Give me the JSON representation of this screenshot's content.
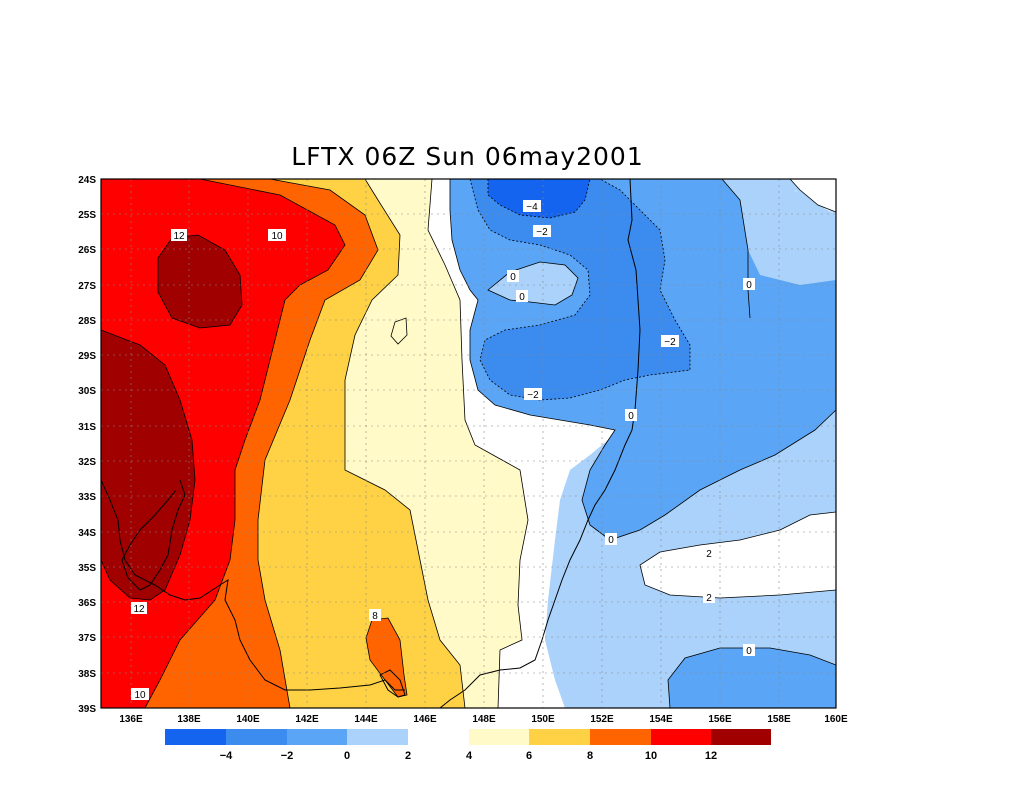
{
  "title": "LFTX 06Z Sun 06may2001",
  "lat_ticks": [
    "24S",
    "25S",
    "26S",
    "27S",
    "28S",
    "29S",
    "30S",
    "31S",
    "32S",
    "33S",
    "34S",
    "35S",
    "36S",
    "37S",
    "38S",
    "39S"
  ],
  "lon_ticks": [
    "136E",
    "138E",
    "140E",
    "142E",
    "144E",
    "146E",
    "148E",
    "150E",
    "152E",
    "154E",
    "156E",
    "158E",
    "160E"
  ],
  "colors": {
    "lt_m4": "#1464f0",
    "m4_m2": "#3c8cf0",
    "m2_0": "#5aa5f5",
    "0_2": "#aad2fa",
    "2_4": "#ffffff",
    "4_6": "#fffac8",
    "6_8": "#ffd246",
    "8_10": "#ff6400",
    "10_12": "#ff0000",
    "gt_12": "#a00000"
  },
  "colorbar": {
    "labels": [
      "−4",
      "−2",
      "0",
      "2",
      "4",
      "6",
      "8",
      "10",
      "12"
    ]
  },
  "contour_labels": [
    {
      "text": "12"
    },
    {
      "text": "10"
    },
    {
      "text": "−4"
    },
    {
      "text": "−2"
    },
    {
      "text": "0"
    },
    {
      "text": "0"
    },
    {
      "text": "0"
    },
    {
      "text": "−2"
    },
    {
      "text": "−2"
    },
    {
      "text": "0"
    },
    {
      "text": "0"
    },
    {
      "text": "2"
    },
    {
      "text": "2"
    },
    {
      "text": "0"
    },
    {
      "text": "12"
    },
    {
      "text": "8"
    },
    {
      "text": "10"
    }
  ]
}
